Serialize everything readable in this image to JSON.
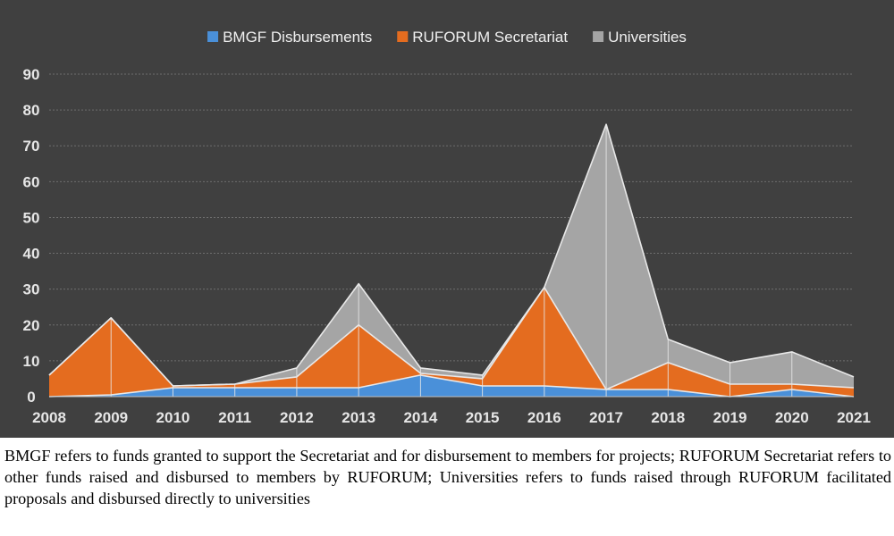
{
  "chart_data": {
    "type": "area",
    "stacked": true,
    "x": [
      "2008",
      "2009",
      "2010",
      "2011",
      "2012",
      "2013",
      "2014",
      "2015",
      "2016",
      "2017",
      "2018",
      "2019",
      "2020",
      "2021"
    ],
    "series": [
      {
        "name": "BMGF Disbursements",
        "color": "#4a90d9",
        "values": [
          0,
          0.5,
          2.5,
          2.5,
          2.5,
          2.5,
          6,
          3,
          3,
          2,
          2,
          0,
          2,
          0
        ]
      },
      {
        "name": "RUFORUM Secretariat",
        "color": "#e46c1f",
        "values": [
          6,
          21.5,
          0.5,
          1,
          3,
          17.5,
          0.5,
          2,
          27.5,
          0,
          7.5,
          3.5,
          1.5,
          2.5
        ]
      },
      {
        "name": "Universities",
        "color": "#a5a5a5",
        "values": [
          0,
          0,
          0,
          0,
          2.5,
          11.5,
          1.5,
          1,
          0,
          74,
          6.5,
          6,
          9,
          3
        ]
      }
    ],
    "ylim": [
      0,
      90
    ],
    "yticks": [
      "0",
      "10",
      "20",
      "30",
      "40",
      "50",
      "60",
      "70",
      "80",
      "90"
    ],
    "grid": true,
    "legend_position": "top"
  },
  "caption": "BMGF refers to funds granted to support the Secretariat and for disbursement to members for projects; RUFORUM Secretariat refers to other funds raised and disbursed to members by RUFORUM; Universities refers to funds raised through RUFORUM facilitated proposals and disbursed directly to universities"
}
